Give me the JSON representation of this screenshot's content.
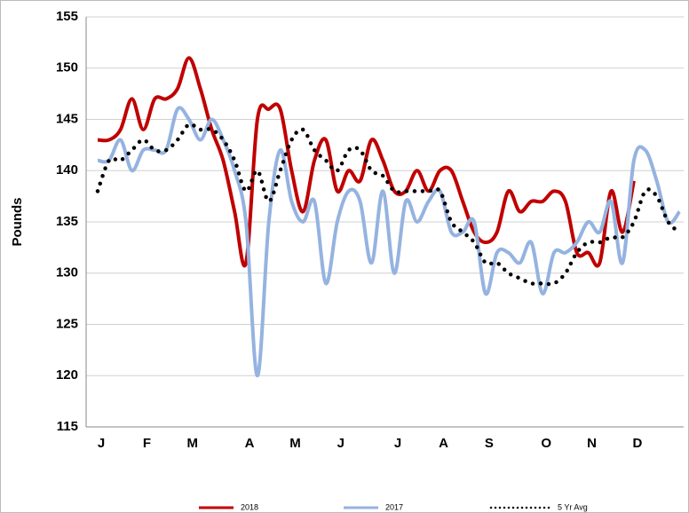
{
  "chart_data": {
    "type": "line",
    "y_label": "Pounds",
    "categories": [
      "J",
      null,
      null,
      null,
      "F",
      null,
      null,
      null,
      "M",
      null,
      null,
      null,
      null,
      "A",
      null,
      null,
      null,
      "M",
      null,
      null,
      null,
      "J",
      null,
      null,
      null,
      null,
      "J",
      null,
      null,
      null,
      "A",
      null,
      null,
      null,
      "S",
      null,
      null,
      null,
      null,
      "O",
      null,
      null,
      null,
      "N",
      null,
      null,
      null,
      "D",
      null,
      null,
      null,
      null
    ],
    "series": [
      {
        "name": "2018",
        "color": "#c00000",
        "style": "solid",
        "values": [
          143,
          143,
          144,
          147,
          144,
          147,
          147,
          148,
          151,
          148,
          144,
          141,
          136,
          131,
          145,
          146,
          146,
          140,
          136,
          141,
          143,
          138,
          140,
          139,
          143,
          141,
          138,
          138,
          140,
          138,
          140,
          140,
          137,
          134,
          133,
          134,
          138,
          136,
          137,
          137,
          138,
          137,
          132,
          132,
          131,
          138,
          134,
          139,
          null,
          null,
          null,
          null
        ]
      },
      {
        "name": "2017",
        "color": "#95b3e0",
        "style": "solid",
        "values": [
          141,
          141,
          143,
          140,
          142,
          142,
          142,
          146,
          145,
          143,
          145,
          143,
          140,
          135,
          120,
          135,
          142,
          137,
          135,
          137,
          129,
          135,
          138,
          137,
          131,
          138,
          130,
          137,
          135,
          137,
          138,
          134,
          134,
          135,
          128,
          132,
          132,
          131,
          133,
          128,
          132,
          132,
          133,
          135,
          134,
          137,
          131,
          141,
          142,
          139,
          135,
          136
        ]
      },
      {
        "name": "5 Yr Avg",
        "color": "#000000",
        "style": "dotted",
        "values": [
          138,
          141,
          141,
          142,
          143,
          142,
          142,
          143,
          144.5,
          144,
          144,
          143,
          141,
          138,
          140,
          137,
          140,
          143,
          144,
          142,
          141,
          140,
          142,
          142,
          140,
          139.5,
          138,
          138,
          138,
          138,
          138,
          135,
          134,
          133,
          131,
          131,
          130,
          129.5,
          129,
          129,
          129,
          130,
          132,
          133,
          133,
          133.5,
          133.5,
          135,
          138,
          137.5,
          135,
          134
        ]
      }
    ],
    "ylim": [
      115,
      155
    ],
    "yticks": [
      115,
      120,
      125,
      130,
      135,
      140,
      145,
      150,
      155
    ],
    "grid": true
  }
}
